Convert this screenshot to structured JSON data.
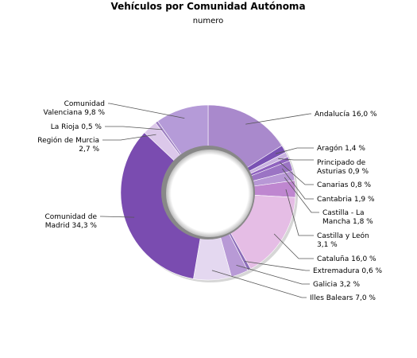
{
  "chart_data": {
    "type": "pie",
    "title": "Vehículos por Comunidad Autónoma",
    "subtitle": "numero",
    "series": [
      {
        "name": "Andalucía",
        "value": 16.0,
        "label": [
          "Andalucía 16,0 %"
        ],
        "color": "#a989cc"
      },
      {
        "name": "Aragón",
        "value": 1.4,
        "label": [
          "Aragón 1,4 %"
        ],
        "color": "#7a52b4"
      },
      {
        "name": "Principado de Asturias",
        "value": 0.9,
        "label": [
          "Principado de",
          "Asturias 0,9 %"
        ],
        "color": "#c9b3e0"
      },
      {
        "name": "Canarias",
        "value": 0.8,
        "label": [
          "Canarias 0,8 %"
        ],
        "color": "#8f63bf"
      },
      {
        "name": "Cantabria",
        "value": 1.9,
        "label": [
          "Cantabria 1,9 %"
        ],
        "color": "#9b74c4"
      },
      {
        "name": "Castilla - La Mancha",
        "value": 1.8,
        "label": [
          "Castilla - La",
          "Mancha 1,8 %"
        ],
        "color": "#b898d6"
      },
      {
        "name": "Castilla y León",
        "value": 3.1,
        "label": [
          "Castilla y León",
          "3,1 %"
        ],
        "color": "#bf87d0"
      },
      {
        "name": "Cataluña",
        "value": 16.0,
        "label": [
          "Cataluña 16,0 %"
        ],
        "color": "#e5bde5"
      },
      {
        "name": "Extremadura",
        "value": 0.6,
        "label": [
          "Extremadura 0,6 %"
        ],
        "color": "#8b6cb8"
      },
      {
        "name": "Galicia",
        "value": 3.2,
        "label": [
          "Galicia 3,2 %"
        ],
        "color": "#b89ad6"
      },
      {
        "name": "Illes Balears",
        "value": 7.0,
        "label": [
          "Illes Balears 7,0 %"
        ],
        "color": "#e4d8f0"
      },
      {
        "name": "Comunidad de Madrid",
        "value": 34.3,
        "label": [
          "Comunidad de",
          "Madrid 34,3 %"
        ],
        "color": "#7a4cb0"
      },
      {
        "name": "Región de Murcia",
        "value": 2.7,
        "label": [
          "Región de Murcia",
          "2,7 %"
        ],
        "color": "#dcc8ea"
      },
      {
        "name": "La Rioja",
        "value": 0.5,
        "label": [
          "La Rioja 0,5 %"
        ],
        "color": "#9e7fc2"
      },
      {
        "name": "Comunidad Valenciana",
        "value": 9.8,
        "label": [
          "Comunidad",
          "Valenciana 9,8 %"
        ],
        "color": "#b59bd8"
      }
    ]
  }
}
